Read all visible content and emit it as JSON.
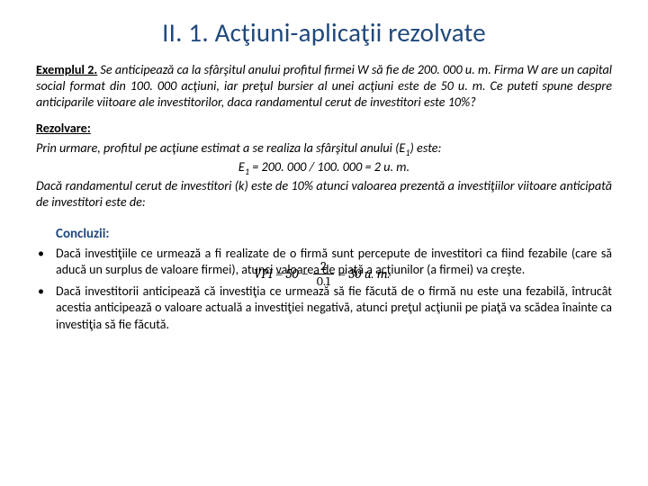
{
  "title": "II. 1. Acţiuni-aplicaţii rezolvate",
  "exLabel": "Exemplul 2.",
  "exText": " Se anticipează ca la sfârşitul anului profitul firmei W să fie de 200. 000 u. m. Firma W are un capital social format din 100. 000 acţiuni, iar preţul bursier al unei acţiuni este de 50 u. m. Ce puteti spune despre anticiparile viitoare ale investitorilor, daca randamentul cerut de investitori este 10%?",
  "rezLabel": "Rezolvare:",
  "solv1a": "Prin urmare, profitul pe acţiune estimat a se realiza la sfârşitul anului (E",
  "solv1b": ") este:",
  "solvEqA": "E",
  "solvEqB": " = 200. 000 / 100. 000 = 2 u. m.",
  "solv2": "Dacă randamentul cerut de investitori (k) este de 10% atunci valoarea prezentă a investiţiilor viitoare anticipată de investitori este de:",
  "concLabel": "Concluzii:",
  "formula": {
    "lhs": "VPI = 50 − ",
    "num": "2",
    "den": "0.1",
    "rhs": " = 30 u. m."
  },
  "conc": [
    "Dacă investiţiile ce urmează a fi realizate de o firmă sunt percepute de investitori ca fiind fezabile (care să aducă un surplus de valoare firmei), atunci valoarea de piaţă a acţiunilor (a firmei) va creşte.",
    "Dacă investitorii anticipează că investiţia ce urmează să fie făcută de o firmă nu este una fezabilă, întrucât acestia anticipează o valoare actuală a investiţiei negativă, atunci preţul acţiunii pe piaţă va scădea înainte ca investiţia să fie făcută."
  ],
  "colors": {
    "titleColor": "#1f497d",
    "textColor": "#000000",
    "bg": "#ffffff"
  },
  "fonts": {
    "titleSize": 29,
    "bodySize": 14,
    "family": "Calibri"
  }
}
